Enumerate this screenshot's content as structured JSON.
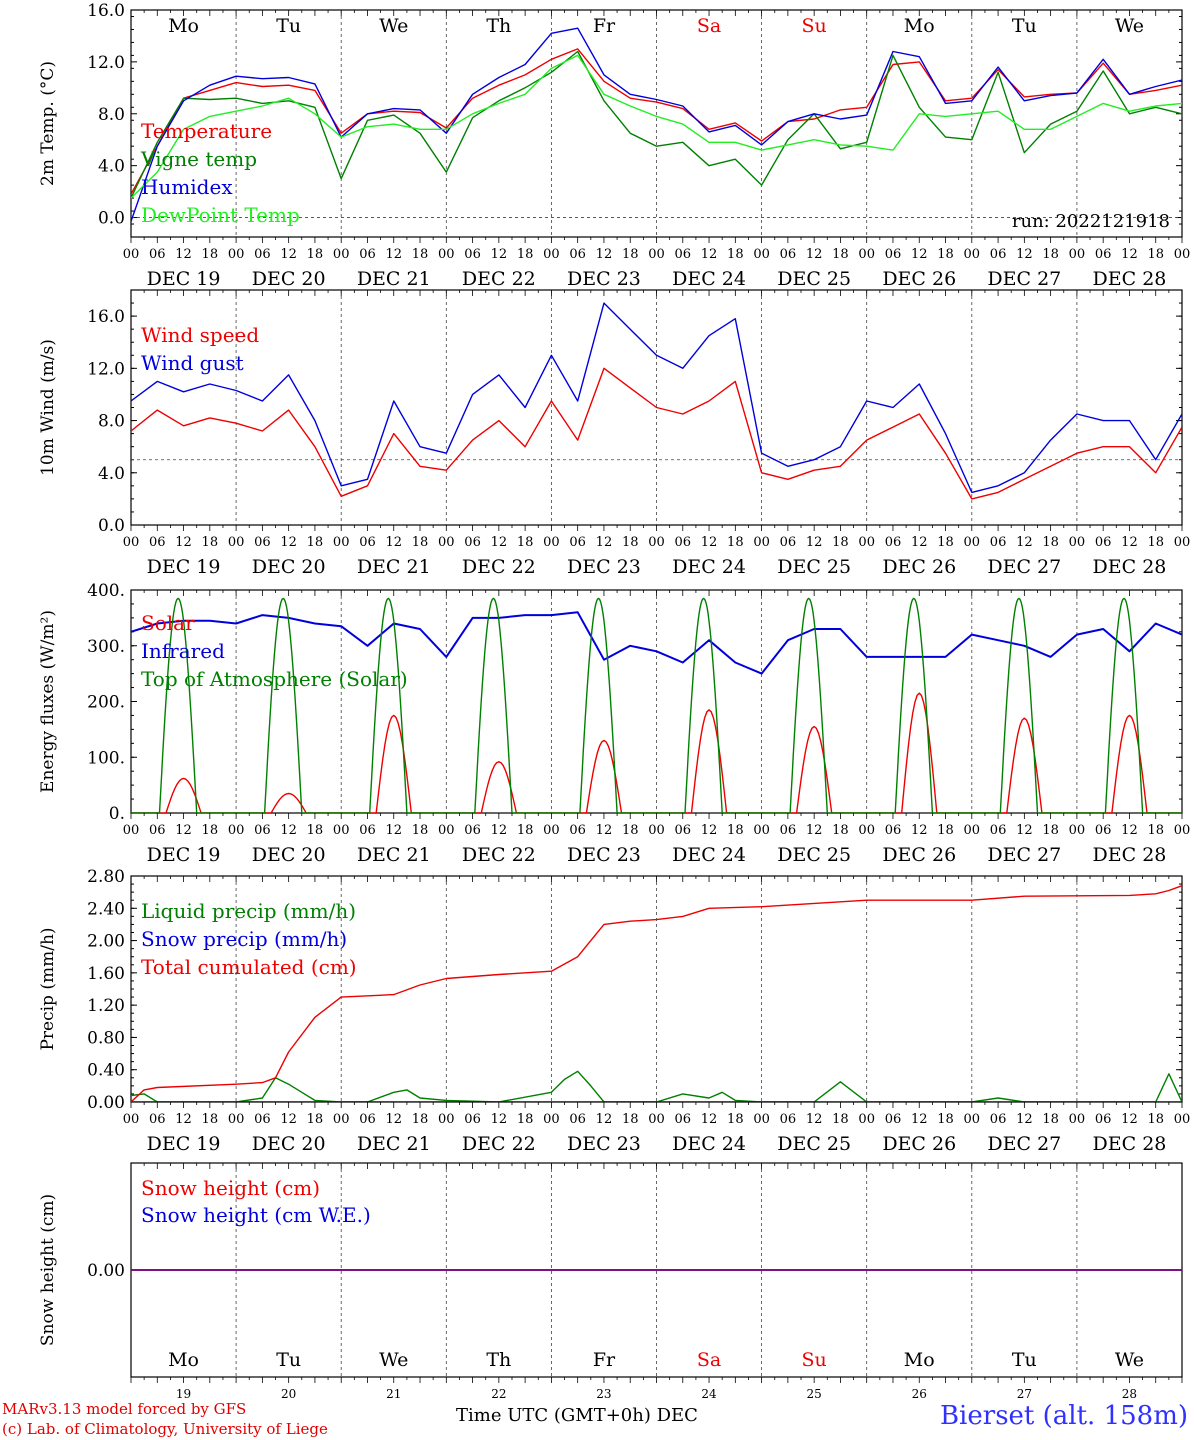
{
  "colors": {
    "red": "#ee0000",
    "blue": "#0000dd",
    "green": "#008000",
    "light_green": "#22ee22",
    "purple": "#800080",
    "weekend": "#ee0000",
    "weekday": "#000000"
  },
  "x_axis": {
    "hour_ticks": [
      "00",
      "06",
      "12",
      "18"
    ],
    "final_tick": "00",
    "dates": [
      "DEC 19",
      "DEC 20",
      "DEC 21",
      "DEC 22",
      "DEC 23",
      "DEC 24",
      "DEC 25",
      "DEC 26",
      "DEC 27",
      "DEC 28"
    ],
    "weekdays": [
      "Mo",
      "Tu",
      "We",
      "Th",
      "Fr",
      "Sa",
      "Su",
      "Mo",
      "Tu",
      "We"
    ],
    "weekend_flags": [
      false,
      false,
      false,
      false,
      false,
      true,
      true,
      false,
      false,
      false
    ],
    "day_numbers": [
      "19",
      "20",
      "21",
      "22",
      "23",
      "24",
      "25",
      "26",
      "27",
      "28"
    ],
    "month": "DEC",
    "label": "Time UTC (GMT+0h)"
  },
  "footer": {
    "model": "MARv3.13 model forced by GFS",
    "copyright": "(c) Lab. of Climatology, University of Liege",
    "station": "Bierset (alt. 158m)"
  },
  "chart_data": [
    {
      "type": "line",
      "ylabel": "2m Temp. (°C)",
      "ylim": [
        -1.5,
        16.0
      ],
      "yticks": [
        "16.0",
        "12.0",
        "8.0",
        "4.0",
        "0.0"
      ],
      "yticks_values": [
        16,
        12,
        8,
        4,
        0
      ],
      "reference_line": 0,
      "annotation": "run: 2022121918",
      "x_unit": "hours since DEC 19 00 UTC",
      "series": [
        {
          "name": "Temperature",
          "color": "red",
          "x": [
            0,
            6,
            12,
            18,
            24,
            30,
            36,
            42,
            48,
            54,
            60,
            66,
            72,
            78,
            84,
            90,
            96,
            102,
            108,
            114,
            120,
            126,
            132,
            138,
            144,
            150,
            156,
            162,
            168,
            174,
            180,
            186,
            192,
            198,
            204,
            210,
            216,
            222,
            228,
            234,
            240
          ],
          "values": [
            1.8,
            5.5,
            9.2,
            9.8,
            10.4,
            10.1,
            10.2,
            9.8,
            6.5,
            8.0,
            8.2,
            8.1,
            6.9,
            9.2,
            10.2,
            11.0,
            12.2,
            13.0,
            10.5,
            9.2,
            8.9,
            8.4,
            6.8,
            7.3,
            5.9,
            7.4,
            7.6,
            8.3,
            8.5,
            11.8,
            12.0,
            9.0,
            9.2,
            11.4,
            9.3,
            9.5,
            9.6,
            11.9,
            9.5,
            9.8,
            10.2
          ]
        },
        {
          "name": "Vigne temp",
          "color": "green",
          "x": [
            0,
            6,
            12,
            18,
            24,
            30,
            36,
            42,
            48,
            54,
            60,
            66,
            72,
            78,
            84,
            90,
            96,
            102,
            108,
            114,
            120,
            126,
            132,
            138,
            144,
            150,
            156,
            162,
            168,
            174,
            180,
            186,
            192,
            198,
            204,
            210,
            216,
            222,
            228,
            234,
            240
          ],
          "values": [
            1.5,
            5.8,
            9.2,
            9.1,
            9.2,
            8.8,
            9.0,
            8.5,
            3.0,
            7.5,
            7.9,
            6.5,
            3.5,
            7.7,
            9.0,
            10.0,
            11.2,
            12.8,
            9.0,
            6.5,
            5.5,
            5.8,
            4.0,
            4.5,
            2.5,
            6.0,
            8.0,
            5.3,
            5.8,
            12.5,
            8.5,
            6.2,
            6.0,
            11.2,
            5.0,
            7.2,
            8.2,
            11.3,
            8.0,
            8.5,
            8.0
          ]
        },
        {
          "name": "Humidex",
          "color": "blue",
          "x": [
            0,
            6,
            12,
            18,
            24,
            30,
            36,
            42,
            48,
            54,
            60,
            66,
            72,
            78,
            84,
            90,
            96,
            102,
            108,
            114,
            120,
            126,
            132,
            138,
            144,
            150,
            156,
            162,
            168,
            174,
            180,
            186,
            192,
            198,
            204,
            210,
            216,
            222,
            228,
            234,
            240
          ],
          "values": [
            -0.3,
            5.5,
            9.0,
            10.2,
            10.9,
            10.7,
            10.8,
            10.3,
            6.2,
            8.0,
            8.4,
            8.3,
            6.5,
            9.5,
            10.8,
            11.8,
            14.2,
            14.6,
            11.0,
            9.5,
            9.1,
            8.6,
            6.6,
            7.1,
            5.6,
            7.4,
            8.0,
            7.6,
            7.9,
            12.8,
            12.4,
            8.8,
            9.0,
            11.6,
            9.0,
            9.4,
            9.6,
            12.2,
            9.5,
            10.1,
            10.6
          ]
        },
        {
          "name": "DewPoint Temp",
          "color": "light_green",
          "x": [
            0,
            6,
            12,
            18,
            24,
            30,
            36,
            42,
            48,
            54,
            60,
            66,
            72,
            78,
            84,
            90,
            96,
            102,
            108,
            114,
            120,
            126,
            132,
            138,
            144,
            150,
            156,
            162,
            168,
            174,
            180,
            186,
            192,
            198,
            204,
            210,
            216,
            222,
            228,
            234,
            240
          ],
          "values": [
            1.5,
            3.5,
            6.8,
            7.8,
            8.2,
            8.6,
            9.2,
            8.0,
            6.2,
            7.0,
            7.2,
            6.8,
            6.8,
            8.0,
            8.8,
            9.5,
            11.5,
            12.5,
            9.5,
            8.6,
            7.8,
            7.2,
            5.8,
            5.8,
            5.2,
            5.6,
            6.0,
            5.6,
            5.5,
            5.2,
            8.0,
            7.8,
            8.0,
            8.2,
            6.8,
            6.8,
            7.8,
            8.8,
            8.2,
            8.6,
            8.8
          ]
        }
      ]
    },
    {
      "type": "line",
      "ylabel": "10m Wind (m/s)",
      "ylim": [
        0,
        18.0
      ],
      "yticks": [
        "16.0",
        "12.0",
        "8.0",
        "4.0",
        "0.0"
      ],
      "yticks_values": [
        16,
        12,
        8,
        4,
        0
      ],
      "reference_line": 5,
      "x_unit": "hours since DEC 19 00 UTC",
      "series": [
        {
          "name": "Wind speed",
          "color": "red",
          "x": [
            0,
            6,
            12,
            18,
            24,
            30,
            36,
            42,
            48,
            54,
            60,
            66,
            72,
            78,
            84,
            90,
            96,
            102,
            108,
            114,
            120,
            126,
            132,
            138,
            144,
            150,
            156,
            162,
            168,
            174,
            180,
            186,
            192,
            198,
            204,
            210,
            216,
            222,
            228,
            234,
            240
          ],
          "values": [
            7.2,
            8.8,
            7.6,
            8.2,
            7.8,
            7.2,
            8.8,
            6.0,
            2.2,
            3.0,
            7.0,
            4.5,
            4.2,
            6.5,
            8.0,
            6.0,
            9.5,
            6.5,
            12.0,
            10.5,
            9.0,
            8.5,
            9.5,
            11.0,
            4.0,
            3.5,
            4.2,
            4.5,
            6.5,
            7.5,
            8.5,
            5.5,
            2.0,
            2.5,
            3.5,
            4.5,
            5.5,
            6.0,
            6.0,
            4.0,
            7.5
          ]
        },
        {
          "name": "Wind gust",
          "color": "blue",
          "x": [
            0,
            6,
            12,
            18,
            24,
            30,
            36,
            42,
            48,
            54,
            60,
            66,
            72,
            78,
            84,
            90,
            96,
            102,
            108,
            114,
            120,
            126,
            132,
            138,
            144,
            150,
            156,
            162,
            168,
            174,
            180,
            186,
            192,
            198,
            204,
            210,
            216,
            222,
            228,
            234,
            240
          ],
          "values": [
            9.5,
            11.0,
            10.2,
            10.8,
            10.3,
            9.5,
            11.5,
            8.0,
            3.0,
            3.5,
            9.5,
            6.0,
            5.5,
            10.0,
            11.5,
            9.0,
            13.0,
            9.5,
            17.0,
            15.0,
            13.0,
            12.0,
            14.5,
            15.8,
            5.5,
            4.5,
            5.0,
            6.0,
            9.5,
            9.0,
            10.8,
            7.0,
            2.5,
            3.0,
            4.0,
            6.5,
            8.5,
            8.0,
            8.0,
            5.0,
            8.5
          ]
        }
      ]
    },
    {
      "type": "line",
      "ylabel": "Energy fluxes (W/m²)",
      "ylim": [
        0,
        400
      ],
      "yticks": [
        "400.",
        "300.",
        "200.",
        "100.",
        "0."
      ],
      "yticks_values": [
        400,
        300,
        200,
        100,
        0
      ],
      "x_unit": "hours since DEC 19 00 UTC",
      "series": [
        {
          "name": "Solar",
          "color": "red",
          "day_peaks": [
            62,
            35,
            175,
            92,
            130,
            185,
            155,
            215,
            170,
            175
          ]
        },
        {
          "name": "Infrared",
          "color": "blue",
          "x": [
            0,
            6,
            12,
            18,
            24,
            30,
            36,
            42,
            48,
            54,
            60,
            66,
            72,
            78,
            84,
            90,
            96,
            102,
            108,
            114,
            120,
            126,
            132,
            138,
            144,
            150,
            156,
            162,
            168,
            174,
            180,
            186,
            192,
            198,
            204,
            210,
            216,
            222,
            228,
            234,
            240
          ],
          "values": [
            325,
            340,
            345,
            345,
            340,
            355,
            350,
            340,
            335,
            300,
            340,
            330,
            280,
            350,
            350,
            355,
            355,
            360,
            275,
            300,
            290,
            270,
            310,
            270,
            250,
            310,
            330,
            330,
            280,
            280,
            280,
            280,
            320,
            310,
            300,
            280,
            320,
            330,
            290,
            340,
            320
          ]
        },
        {
          "name": "Top of Atmosphere (Solar)",
          "color": "green",
          "day_peak": 385,
          "sunrise_hour": 6.5,
          "sunset_hour": 15.0
        }
      ]
    },
    {
      "type": "line",
      "ylabel": "Precip (mm/h)",
      "ylim": [
        0,
        2.8
      ],
      "yticks": [
        "2.80",
        "2.40",
        "2.00",
        "1.60",
        "1.20",
        "0.80",
        "0.40",
        "0.00"
      ],
      "yticks_values": [
        2.8,
        2.4,
        2.0,
        1.6,
        1.2,
        0.8,
        0.4,
        0.0
      ],
      "x_unit": "hours since DEC 19 00 UTC",
      "series": [
        {
          "name": "Liquid precip (mm/h)",
          "color": "green",
          "x": [
            0,
            3,
            6,
            9,
            12,
            24,
            30,
            33,
            36,
            39,
            42,
            48,
            54,
            60,
            63,
            66,
            72,
            84,
            96,
            99,
            102,
            105,
            108,
            120,
            126,
            132,
            135,
            138,
            144,
            156,
            162,
            168,
            192,
            198,
            204,
            228,
            234,
            237,
            240
          ],
          "values": [
            0.08,
            0.1,
            0.0,
            0.0,
            0.0,
            0.0,
            0.05,
            0.3,
            0.22,
            0.12,
            0.02,
            0.0,
            0.0,
            0.12,
            0.15,
            0.05,
            0.02,
            0.0,
            0.12,
            0.28,
            0.38,
            0.2,
            0.0,
            0.0,
            0.1,
            0.05,
            0.12,
            0.02,
            0.0,
            0.0,
            0.25,
            0.0,
            0.0,
            0.05,
            0.0,
            0.0,
            0.0,
            0.35,
            0.0
          ]
        },
        {
          "name": "Snow precip (mm/h)",
          "color": "blue",
          "x": [
            0,
            240
          ],
          "values": [
            0,
            0
          ]
        },
        {
          "name": "Total cumulated (cm)",
          "color": "red",
          "x": [
            0,
            3,
            6,
            24,
            30,
            33,
            36,
            42,
            48,
            60,
            66,
            72,
            84,
            96,
            102,
            105,
            108,
            114,
            120,
            126,
            132,
            144,
            168,
            192,
            204,
            228,
            234,
            237,
            240
          ],
          "values": [
            0.0,
            0.15,
            0.18,
            0.22,
            0.24,
            0.3,
            0.62,
            1.05,
            1.3,
            1.33,
            1.45,
            1.53,
            1.58,
            1.62,
            1.8,
            2.0,
            2.2,
            2.24,
            2.26,
            2.3,
            2.4,
            2.42,
            2.5,
            2.5,
            2.55,
            2.56,
            2.58,
            2.62,
            2.68
          ]
        }
      ]
    },
    {
      "type": "line",
      "ylabel": "Snow height (cm)",
      "ylim": [
        -0.1,
        0.1
      ],
      "yticks": [
        "0.00"
      ],
      "yticks_values": [
        0.0
      ],
      "x_unit": "hours since DEC 19 00 UTC",
      "series": [
        {
          "name": "Snow height (cm)",
          "color": "red",
          "x": [
            0,
            240
          ],
          "values": [
            0,
            0
          ]
        },
        {
          "name": "Snow height (cm W.E.)",
          "color": "blue",
          "x": [
            0,
            240
          ],
          "values": [
            0,
            0
          ]
        }
      ]
    }
  ]
}
